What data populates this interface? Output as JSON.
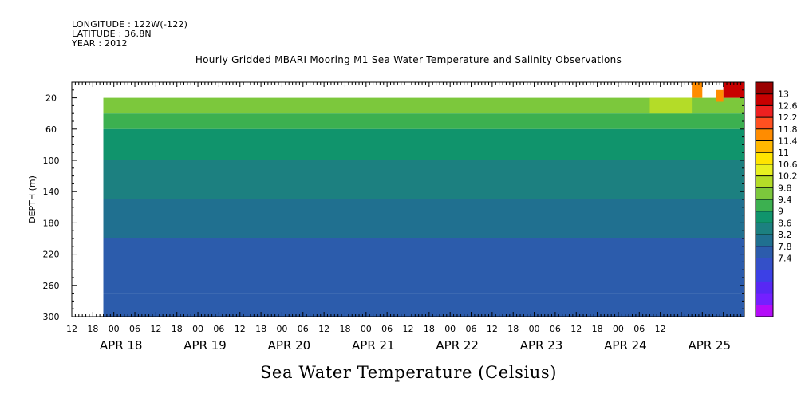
{
  "header": {
    "longitude": "LONGITUDE : 122W(-122)",
    "latitude": "LATITUDE : 36.8N",
    "year": "YEAR : 2012"
  },
  "chart_data": {
    "type": "heatmap",
    "title": "Hourly Gridded MBARI Mooring M1 Sea Water Temperature and Salinity Observations",
    "subtitle": "Sea Water Temperature (Celsius)",
    "xlabel": "",
    "ylabel": "DEPTH (m)",
    "x_range_hours_from_apr18_00": [
      -12,
      180
    ],
    "hour_tick_labels": [
      "12",
      "18",
      "00",
      "06",
      "12",
      "18",
      "00",
      "06",
      "12",
      "18",
      "00",
      "06",
      "12",
      "18",
      "00",
      "06",
      "12",
      "18",
      "00",
      "06",
      "12",
      "18",
      "00",
      "06",
      "12",
      "18",
      "00",
      "06",
      "12"
    ],
    "day_labels": [
      "APR 18",
      "APR 19",
      "APR 20",
      "APR 21",
      "APR 22",
      "APR 23",
      "APR 24",
      "APR 25"
    ],
    "day_label_hours": [
      0,
      24,
      48,
      72,
      96,
      120,
      144,
      168
    ],
    "y_range_depth_m": [
      300,
      0
    ],
    "y_ticks": [
      20,
      60,
      100,
      140,
      180,
      220,
      260,
      300
    ],
    "y_tick_labels": [
      "20",
      "60",
      "100",
      "140",
      "180",
      "220",
      "260",
      "300"
    ],
    "data_start_hour": -3,
    "data_end_hour": 180,
    "colorbar_levels": [
      "13",
      "12.6",
      "12.2",
      "11.8",
      "11.4",
      "11",
      "10.6",
      "10.2",
      "9.8",
      "9.4",
      "9",
      "8.6",
      "8.2",
      "7.8",
      "7.4"
    ],
    "colorbar_values": [
      13,
      12.6,
      12.2,
      11.8,
      11.4,
      11,
      10.6,
      10.2,
      9.8,
      9.4,
      9,
      8.6,
      8.2,
      7.8,
      7.4
    ],
    "colors": [
      "#9a0000",
      "#c80000",
      "#ee2020",
      "#ff5020",
      "#ff8c00",
      "#ffb800",
      "#ffe400",
      "#e8f020",
      "#b4dc28",
      "#7cc83c",
      "#3cb050",
      "#10946c",
      "#1c8080",
      "#207090",
      "#2c5cac",
      "#3450c8",
      "#3c40e6",
      "#5828f4",
      "#7420ff",
      "#b40cf8"
    ],
    "depth_profile": [
      {
        "depth_top": 20,
        "depth_bottom": 40,
        "temp": 9.5
      },
      {
        "depth_top": 40,
        "depth_bottom": 60,
        "temp": 9.1
      },
      {
        "depth_top": 60,
        "depth_bottom": 75,
        "temp": 8.9
      },
      {
        "depth_top": 75,
        "depth_bottom": 100,
        "temp": 8.7
      },
      {
        "depth_top": 100,
        "depth_bottom": 125,
        "temp": 8.5
      },
      {
        "depth_top": 125,
        "depth_bottom": 150,
        "temp": 8.3
      },
      {
        "depth_top": 150,
        "depth_bottom": 175,
        "temp": 8.1
      },
      {
        "depth_top": 175,
        "depth_bottom": 200,
        "temp": 7.95
      },
      {
        "depth_top": 200,
        "depth_bottom": 270,
        "temp": 7.7
      },
      {
        "depth_top": 270,
        "depth_bottom": 300,
        "temp": 7.5
      }
    ],
    "surface_warm_patches": [
      {
        "hour_start": 153,
        "hour_end": 165,
        "depth_top": 20,
        "depth_bottom": 40,
        "temp": 9.8
      },
      {
        "hour_start": 165,
        "hour_end": 168,
        "depth_top": 0,
        "depth_bottom": 20,
        "temp": 11.4
      },
      {
        "hour_start": 174,
        "hour_end": 180,
        "depth_top": 0,
        "depth_bottom": 20,
        "temp": 12.8
      },
      {
        "hour_start": 172,
        "hour_end": 174,
        "depth_top": 10,
        "depth_bottom": 25,
        "temp": 11.4
      }
    ]
  }
}
